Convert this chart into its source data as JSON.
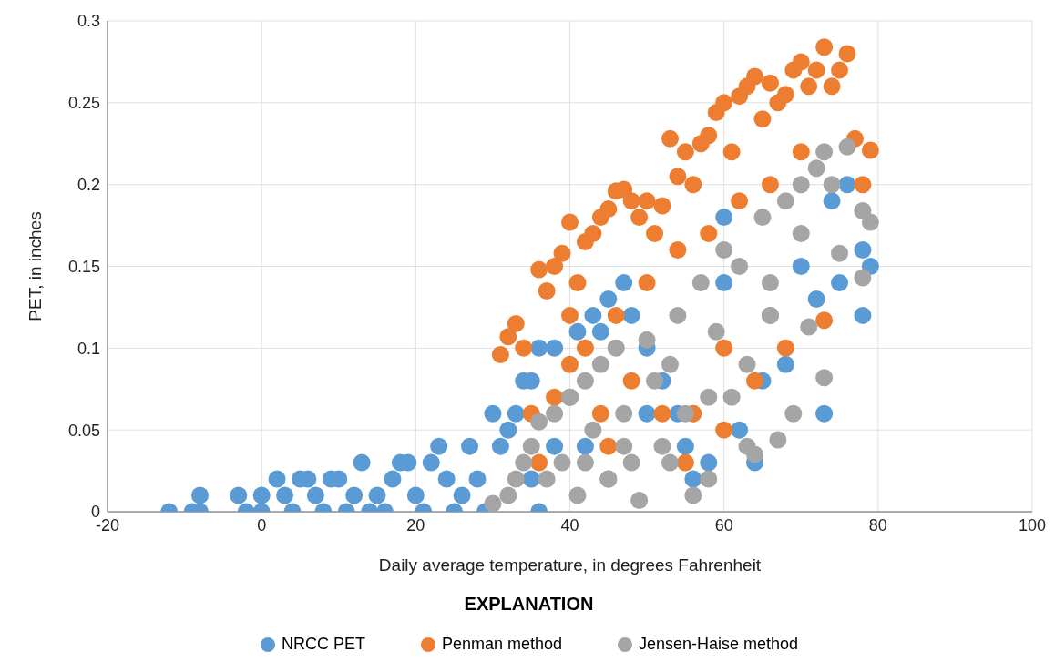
{
  "chart_data": {
    "type": "scatter",
    "xlabel": "Daily average temperature, in degrees Fahrenheit",
    "ylabel": "PET, in inches",
    "legend_title": "EXPLANATION",
    "legend": "bottom",
    "grid": true,
    "marker": "circle",
    "xlim": [
      -20,
      100
    ],
    "xticks": [
      -20,
      0,
      20,
      40,
      60,
      80,
      100
    ],
    "ylim": [
      0,
      0.3
    ],
    "yticks": [
      0,
      0.05,
      0.1,
      0.15,
      0.2,
      0.25,
      0.3
    ],
    "series": [
      {
        "name": "NRCC PET",
        "color": "#5b9bd5",
        "x": [
          -12,
          -9,
          -8,
          -8,
          -3,
          -2,
          0,
          0,
          2,
          3,
          4,
          5,
          6,
          7,
          8,
          9,
          10,
          11,
          12,
          13,
          14,
          15,
          16,
          17,
          18,
          19,
          20,
          21,
          22,
          23,
          24,
          25,
          26,
          27,
          28,
          29,
          30,
          31,
          32,
          33,
          34,
          35,
          36,
          36,
          38,
          40,
          41,
          43,
          44,
          45,
          47,
          48,
          50,
          52,
          54,
          55,
          56,
          58,
          60,
          60,
          62,
          64,
          66,
          68,
          70,
          72,
          73,
          74,
          75,
          76,
          78,
          78,
          79,
          65,
          50,
          45,
          42,
          35,
          38
        ],
        "values": [
          0,
          0,
          0.01,
          0,
          0.01,
          0,
          0.01,
          0,
          0.02,
          0.01,
          0,
          0.02,
          0.02,
          0.01,
          0,
          0.02,
          0.02,
          0,
          0.01,
          0.03,
          0,
          0.01,
          0,
          0.02,
          0.03,
          0.03,
          0.01,
          0,
          0.03,
          0.04,
          0.02,
          0,
          0.01,
          0.04,
          0.02,
          0,
          0.06,
          0.04,
          0.05,
          0.06,
          0.08,
          0.08,
          0,
          0.1,
          0.1,
          0.07,
          0.11,
          0.12,
          0.11,
          0.13,
          0.14,
          0.12,
          0.1,
          0.08,
          0.06,
          0.04,
          0.02,
          0.03,
          0.14,
          0.18,
          0.05,
          0.03,
          0.12,
          0.09,
          0.15,
          0.13,
          0.06,
          0.19,
          0.14,
          0.2,
          0.12,
          0.16,
          0.15,
          0.08,
          0.06,
          0.02,
          0.04,
          0.02,
          0.04
        ]
      },
      {
        "name": "Penman method",
        "color": "#ed7d31",
        "x": [
          31,
          32,
          33,
          34,
          35,
          36,
          37,
          38,
          39,
          40,
          40,
          41,
          42,
          43,
          44,
          45,
          46,
          47,
          48,
          49,
          50,
          51,
          52,
          53,
          54,
          55,
          56,
          57,
          58,
          59,
          60,
          61,
          62,
          63,
          64,
          65,
          66,
          67,
          68,
          69,
          70,
          71,
          72,
          73,
          74,
          75,
          76,
          77,
          79,
          78,
          73,
          68,
          64,
          60,
          56,
          52,
          48,
          44,
          40,
          36,
          38,
          42,
          46,
          50,
          54,
          58,
          62,
          66,
          70,
          55,
          60,
          45
        ],
        "values": [
          0.096,
          0.107,
          0.115,
          0.1,
          0.06,
          0.148,
          0.135,
          0.15,
          0.158,
          0.177,
          0.12,
          0.14,
          0.165,
          0.17,
          0.18,
          0.185,
          0.196,
          0.197,
          0.19,
          0.18,
          0.19,
          0.17,
          0.187,
          0.228,
          0.205,
          0.22,
          0.2,
          0.225,
          0.23,
          0.244,
          0.25,
          0.22,
          0.254,
          0.26,
          0.266,
          0.24,
          0.262,
          0.25,
          0.255,
          0.27,
          0.275,
          0.26,
          0.27,
          0.284,
          0.26,
          0.27,
          0.28,
          0.228,
          0.221,
          0.2,
          0.117,
          0.1,
          0.08,
          0.1,
          0.06,
          0.06,
          0.08,
          0.06,
          0.09,
          0.03,
          0.07,
          0.1,
          0.12,
          0.14,
          0.16,
          0.17,
          0.19,
          0.2,
          0.22,
          0.03,
          0.05,
          0.04
        ]
      },
      {
        "name": "Jensen-Haise method",
        "color": "#a5a5a5",
        "x": [
          30,
          32,
          33,
          34,
          35,
          36,
          37,
          38,
          39,
          40,
          41,
          42,
          43,
          44,
          45,
          46,
          47,
          48,
          49,
          50,
          51,
          52,
          53,
          54,
          55,
          56,
          57,
          58,
          59,
          60,
          61,
          62,
          63,
          64,
          65,
          66,
          67,
          68,
          69,
          70,
          71,
          72,
          73,
          73,
          74,
          75,
          76,
          78,
          78,
          79,
          63,
          58,
          53,
          47,
          42,
          66,
          70
        ],
        "values": [
          0.005,
          0.01,
          0.02,
          0.03,
          0.04,
          0.055,
          0.02,
          0.06,
          0.03,
          0.07,
          0.01,
          0.08,
          0.05,
          0.09,
          0.02,
          0.1,
          0.06,
          0.03,
          0.007,
          0.105,
          0.08,
          0.04,
          0.09,
          0.12,
          0.06,
          0.01,
          0.14,
          0.02,
          0.11,
          0.16,
          0.07,
          0.15,
          0.04,
          0.035,
          0.18,
          0.12,
          0.044,
          0.19,
          0.06,
          0.2,
          0.113,
          0.21,
          0.082,
          0.22,
          0.2,
          0.158,
          0.223,
          0.143,
          0.184,
          0.177,
          0.09,
          0.07,
          0.03,
          0.04,
          0.03,
          0.14,
          0.17
        ]
      }
    ]
  }
}
